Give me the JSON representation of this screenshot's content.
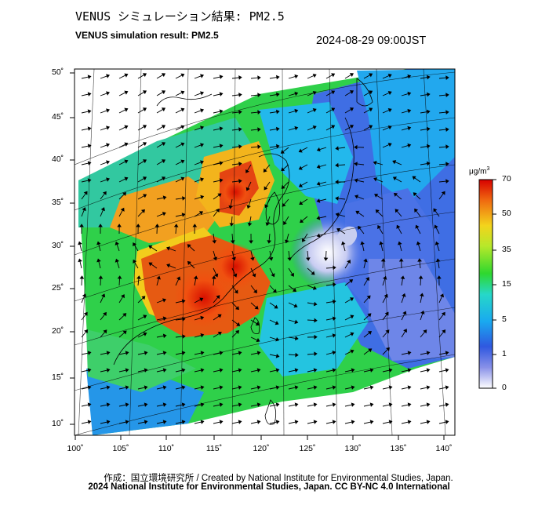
{
  "title_jp": "VENUS シミュレーション結果: PM2.5",
  "title_en": "VENUS simulation result: PM2.5",
  "timestamp": "2024-08-29 09:00JST",
  "axes": {
    "lat_labels": [
      "50˚",
      "45˚",
      "40˚",
      "35˚",
      "30˚",
      "25˚",
      "20˚",
      "15˚",
      "10˚"
    ],
    "lon_labels": [
      "100˚",
      "105˚",
      "110˚",
      "115˚",
      "120˚",
      "125˚",
      "130˚",
      "135˚",
      "140˚"
    ]
  },
  "colorbar": {
    "unit": "μg/m",
    "unit_sup": "3",
    "ticks": [
      "70",
      "50",
      "35",
      "15",
      "5",
      "1",
      "0"
    ],
    "colors": [
      "#ffffff",
      "#3d50e0",
      "#1aa9f0",
      "#22e6d0",
      "#2ed82e",
      "#f2e21e",
      "#f58a10",
      "#e00000"
    ]
  },
  "credit_line1": "作成：国立環境研究所 / Created by National Institute for Environmental Studies, Japan.",
  "credit_line2": "2024 National Institute for Environmental Studies, Japan. CC BY-NC 4.0 International",
  "legend_glyph": "vector arrows = surface wind"
}
